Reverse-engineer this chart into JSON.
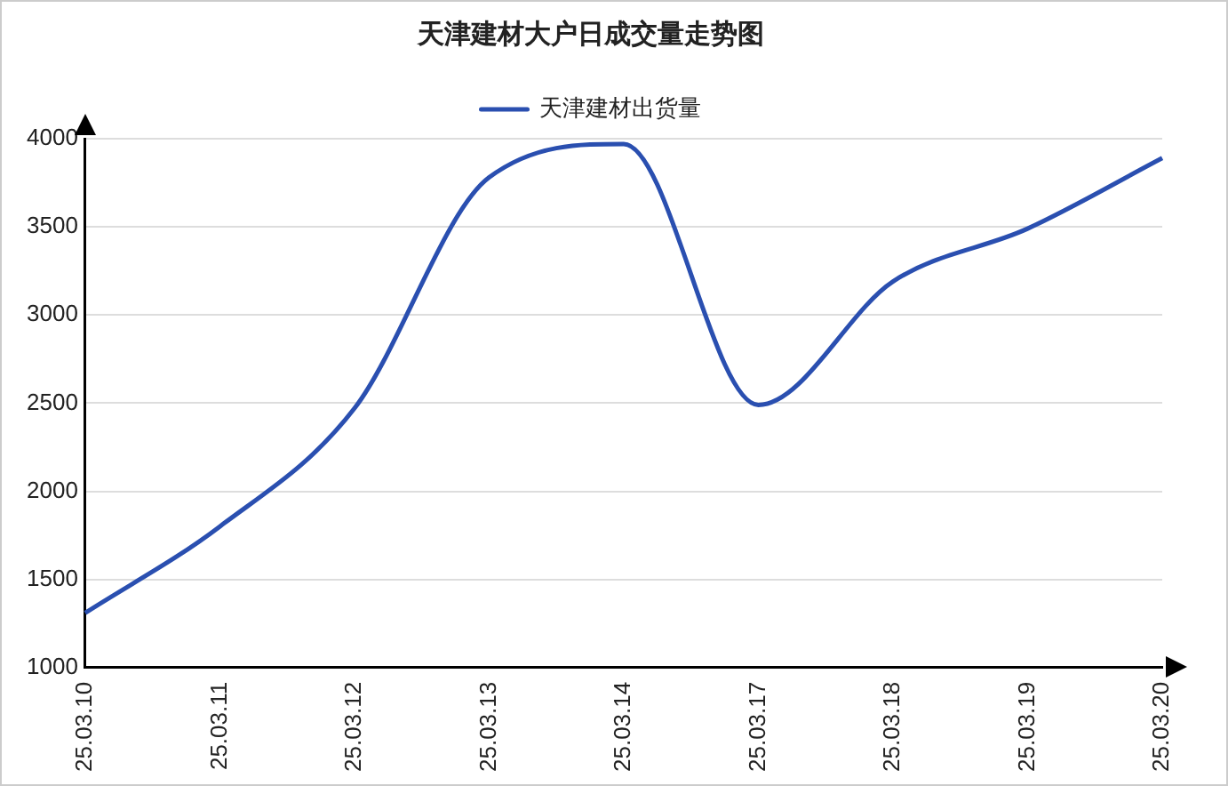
{
  "chart_data": {
    "type": "line",
    "title": "天津建材大户日成交量走势图",
    "categories": [
      "25.03.10",
      "25.03.11",
      "25.03.12",
      "25.03.13",
      "25.03.14",
      "25.03.17",
      "25.03.18",
      "25.03.19",
      "25.03.20"
    ],
    "series": [
      {
        "name": "天津建材出货量",
        "color": "#2a4fb0",
        "values": [
          1310,
          1800,
          2470,
          3780,
          3970,
          2490,
          3190,
          3490,
          3890
        ]
      }
    ],
    "ylim": [
      1000,
      4000
    ],
    "yticks": [
      1000,
      1500,
      2000,
      2500,
      3000,
      3500,
      4000
    ],
    "grid": "y",
    "legend": "top",
    "marker": "none",
    "line_style": "solid"
  }
}
